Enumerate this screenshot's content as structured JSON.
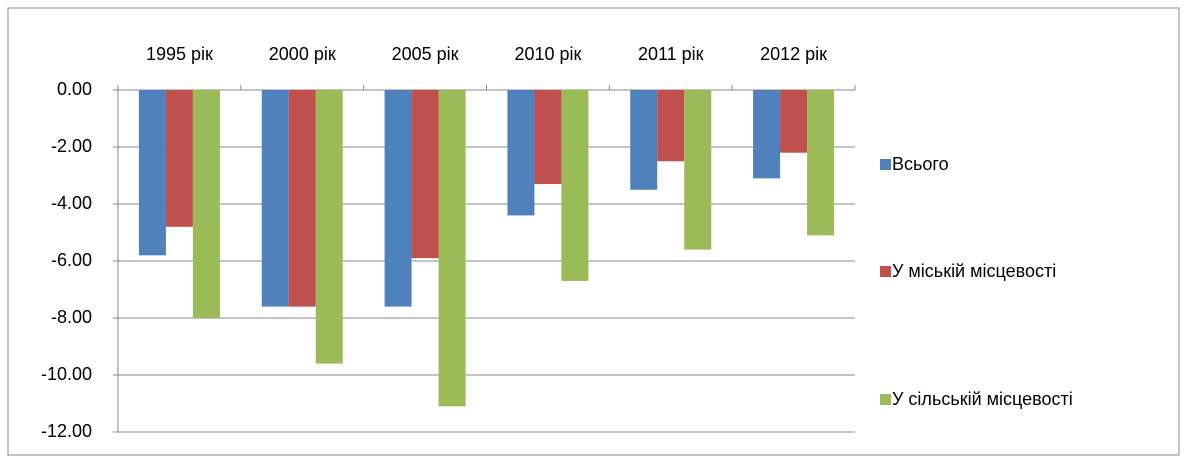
{
  "chart_data": {
    "type": "bar",
    "categories": [
      "1995 рік",
      "2000 рік",
      "2005 рік",
      "2010 рік",
      "2011 рік",
      "2012 рік"
    ],
    "series": [
      {
        "name": "Всього",
        "color": "#4f81bd",
        "values": [
          -5.8,
          -7.6,
          -7.6,
          -4.4,
          -3.5,
          -3.1
        ]
      },
      {
        "name": "У міській місцевості",
        "color": "#c0504d",
        "values": [
          -4.8,
          -7.6,
          -5.9,
          -3.3,
          -2.5,
          -2.2
        ]
      },
      {
        "name": "У сільській місцевості",
        "color": "#9bbb59",
        "values": [
          -8.0,
          -9.6,
          -11.1,
          -6.7,
          -5.6,
          -5.1
        ]
      }
    ],
    "ylim": [
      -12,
      0
    ],
    "yticks": [
      {
        "value": 0,
        "label": "0.00"
      },
      {
        "value": -2,
        "label": "-2.00"
      },
      {
        "value": -4,
        "label": "-4.00"
      },
      {
        "value": -6,
        "label": "-6.00"
      },
      {
        "value": -8,
        "label": "-8.00"
      },
      {
        "value": -10,
        "label": "-10.00"
      },
      {
        "value": -12,
        "label": "-12.00"
      }
    ],
    "grid": true,
    "legend": "right"
  }
}
